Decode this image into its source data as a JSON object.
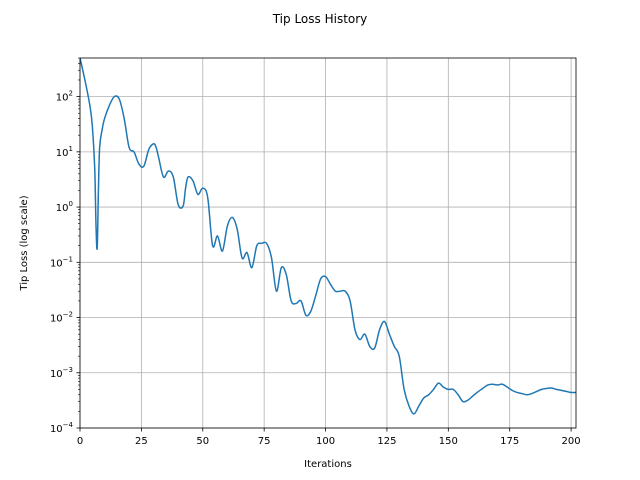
{
  "chart_data": {
    "type": "line",
    "title": "Tip Loss History",
    "xlabel": "Iterations",
    "ylabel": "Tip Loss (log scale)",
    "xlim": [
      0,
      202
    ],
    "ylim": [
      0.0001,
      500
    ],
    "yscale": "log",
    "grid": true,
    "x_ticks": [
      0,
      25,
      50,
      75,
      100,
      125,
      150,
      175,
      200
    ],
    "y_ticks": [
      {
        "value": 0.0001,
        "base": "10",
        "exp": "−4"
      },
      {
        "value": 0.001,
        "base": "10",
        "exp": "−3"
      },
      {
        "value": 0.01,
        "base": "10",
        "exp": "−2"
      },
      {
        "value": 0.1,
        "base": "10",
        "exp": "−1"
      },
      {
        "value": 1,
        "base": "10",
        "exp": "0"
      },
      {
        "value": 10,
        "base": "10",
        "exp": "1"
      },
      {
        "value": 100,
        "base": "10",
        "exp": "2"
      }
    ],
    "line_color": "#1f77b4",
    "series": [
      {
        "x": [
          0,
          2,
          4,
          5,
          6,
          6.5,
          7,
          7.5,
          8,
          9,
          10,
          12,
          14,
          16,
          18,
          20,
          22,
          24,
          26,
          28,
          30,
          31,
          32,
          34,
          36,
          38,
          40,
          42,
          43,
          44,
          46,
          48,
          50,
          52,
          54,
          56,
          58,
          60,
          62,
          64,
          66,
          68,
          70,
          72,
          74,
          76,
          78,
          80,
          82,
          84,
          86,
          88,
          90,
          92,
          94,
          96,
          98,
          100,
          102,
          104,
          106,
          108,
          110,
          112,
          114,
          116,
          118,
          120,
          122,
          124,
          126,
          128,
          130,
          132,
          134,
          136,
          138,
          140,
          142,
          144,
          146,
          148,
          150,
          152,
          154,
          156,
          158,
          160,
          162,
          164,
          166,
          168,
          170,
          172,
          174,
          176,
          178,
          180,
          182,
          184,
          186,
          188,
          190,
          192,
          194,
          196,
          198,
          200,
          202
        ],
        "y": [
          500,
          200,
          70,
          30,
          5,
          0.5,
          0.18,
          2,
          12,
          25,
          40,
          70,
          100,
          90,
          40,
          12,
          10,
          6,
          5.5,
          11,
          14,
          12,
          8,
          3.5,
          4.5,
          3.5,
          1.1,
          1.05,
          2.2,
          3.5,
          3.0,
          1.7,
          2.2,
          1.5,
          0.2,
          0.3,
          0.16,
          0.45,
          0.65,
          0.4,
          0.12,
          0.15,
          0.08,
          0.2,
          0.22,
          0.22,
          0.12,
          0.03,
          0.08,
          0.06,
          0.02,
          0.018,
          0.02,
          0.011,
          0.013,
          0.025,
          0.05,
          0.055,
          0.04,
          0.03,
          0.03,
          0.03,
          0.02,
          0.006,
          0.004,
          0.005,
          0.003,
          0.0028,
          0.006,
          0.0085,
          0.005,
          0.003,
          0.002,
          0.0005,
          0.00025,
          0.00018,
          0.00025,
          0.00035,
          0.0004,
          0.0005,
          0.00065,
          0.00055,
          0.0005,
          0.0005,
          0.0004,
          0.0003,
          0.00032,
          0.00038,
          0.00045,
          0.00052,
          0.0006,
          0.00062,
          0.0006,
          0.00062,
          0.00055,
          0.00048,
          0.00044,
          0.00042,
          0.0004,
          0.00042,
          0.00046,
          0.0005,
          0.00052,
          0.00053,
          0.0005,
          0.00048,
          0.00046,
          0.00044,
          0.00044
        ]
      }
    ]
  }
}
